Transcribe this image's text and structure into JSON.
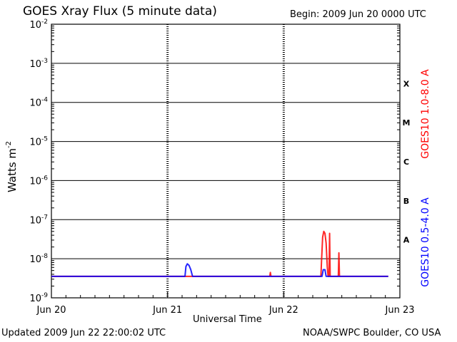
{
  "header": {
    "title": "GOES Xray Flux (5 minute data)",
    "begin": "Begin:  2009 Jun 20 0000 UTC"
  },
  "footer": {
    "updated": "Updated 2009 Jun 22 22:00:02 UTC",
    "credit": "NOAA/SWPC Boulder, CO USA"
  },
  "chart_data": {
    "type": "line",
    "ylabel": "Watts m",
    "ylabel_exp": "-2",
    "xlabel": "Universal Time",
    "yscale": "log",
    "ylim": [
      1e-09,
      0.01
    ],
    "xlim_days": [
      0,
      3
    ],
    "x_ticks": [
      {
        "label": "Jun 20",
        "day": 0
      },
      {
        "label": "Jun 21",
        "day": 1
      },
      {
        "label": "Jun 22",
        "day": 2
      },
      {
        "label": "Jun 23",
        "day": 3
      }
    ],
    "y_ticks": [
      {
        "base": "10",
        "exp": "-9",
        "value": -9
      },
      {
        "base": "10",
        "exp": "-8",
        "value": -8
      },
      {
        "base": "10",
        "exp": "-7",
        "value": -7
      },
      {
        "base": "10",
        "exp": "-6",
        "value": -6
      },
      {
        "base": "10",
        "exp": "-5",
        "value": -5
      },
      {
        "base": "10",
        "exp": "-4",
        "value": -4
      },
      {
        "base": "10",
        "exp": "-3",
        "value": -3
      },
      {
        "base": "10",
        "exp": "-2",
        "value": -2
      }
    ],
    "flare_classes": [
      {
        "label": "A",
        "log_center": -7.5
      },
      {
        "label": "B",
        "log_center": -6.5
      },
      {
        "label": "C",
        "log_center": -5.5
      },
      {
        "label": "M",
        "log_center": -4.5
      },
      {
        "label": "X",
        "log_center": -3.5
      }
    ],
    "grid": true,
    "series": [
      {
        "name": "GOES10 1.0-8.0 A",
        "color": "#ff0000",
        "points": [
          [
            0,
            -8.45
          ],
          [
            1.88,
            -8.45
          ],
          [
            1.885,
            -8.35
          ],
          [
            1.89,
            -8.45
          ],
          [
            2.32,
            -8.45
          ],
          [
            2.325,
            -8.1
          ],
          [
            2.335,
            -7.45
          ],
          [
            2.345,
            -7.3
          ],
          [
            2.355,
            -7.35
          ],
          [
            2.365,
            -7.6
          ],
          [
            2.375,
            -8.2
          ],
          [
            2.382,
            -8.45
          ],
          [
            2.39,
            -8.45
          ],
          [
            2.395,
            -7.35
          ],
          [
            2.4,
            -8.45
          ],
          [
            2.47,
            -8.45
          ],
          [
            2.475,
            -7.85
          ],
          [
            2.48,
            -8.45
          ],
          [
            2.9,
            -8.45
          ]
        ]
      },
      {
        "name": "GOES10 0.5-4.0 A",
        "color": "#0000ff",
        "points": [
          [
            0,
            -8.45
          ],
          [
            1.15,
            -8.45
          ],
          [
            1.158,
            -8.2
          ],
          [
            1.17,
            -8.13
          ],
          [
            1.185,
            -8.17
          ],
          [
            1.2,
            -8.28
          ],
          [
            1.215,
            -8.45
          ],
          [
            2.33,
            -8.45
          ],
          [
            2.34,
            -8.28
          ],
          [
            2.355,
            -8.28
          ],
          [
            2.365,
            -8.45
          ],
          [
            2.9,
            -8.45
          ]
        ]
      }
    ]
  }
}
